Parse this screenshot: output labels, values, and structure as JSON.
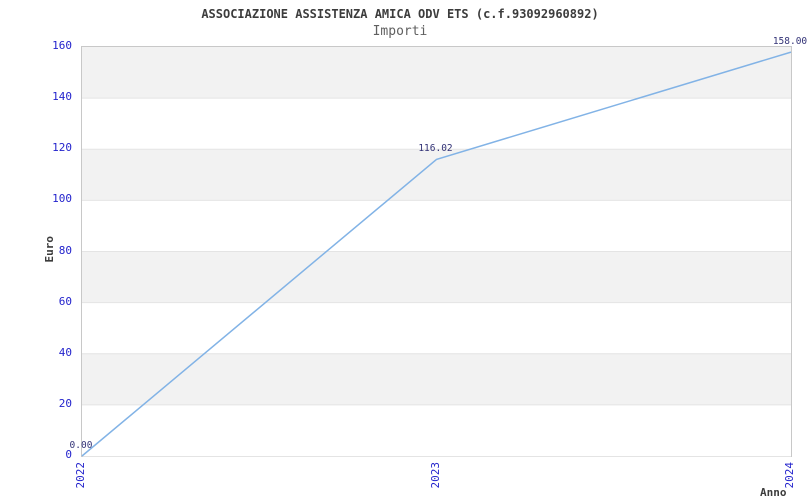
{
  "chart_data": {
    "type": "line",
    "title": "ASSOCIAZIONE ASSISTENZA AMICA ODV ETS (c.f.93092960892)",
    "subtitle": "Importi",
    "xlabel": "Anno",
    "ylabel": "Euro",
    "x": [
      2022,
      2023,
      2024
    ],
    "x_tick_labels": [
      "2022",
      "2023",
      "2024"
    ],
    "series": [
      {
        "name": "Importi",
        "values": [
          0.0,
          116.02,
          158.0
        ],
        "point_labels": [
          "0.00",
          "116.02",
          "158.00"
        ]
      }
    ],
    "y_ticks": [
      0,
      20,
      40,
      60,
      80,
      100,
      120,
      140,
      160
    ],
    "ylim": [
      0,
      160
    ],
    "grid": "horizontal-bands",
    "legend_position": "none",
    "colors": {
      "line": "#82b3e6",
      "band_gray": "#f2f2f2",
      "band_white": "#ffffff",
      "gridline": "#e4e4e4",
      "plot_border": "#c8c8c8",
      "tick_label": "#2323cc",
      "point_label": "#333377",
      "title": "#3c3c3c",
      "subtitle": "#606060",
      "axis_label": "#3c3c3c"
    }
  }
}
